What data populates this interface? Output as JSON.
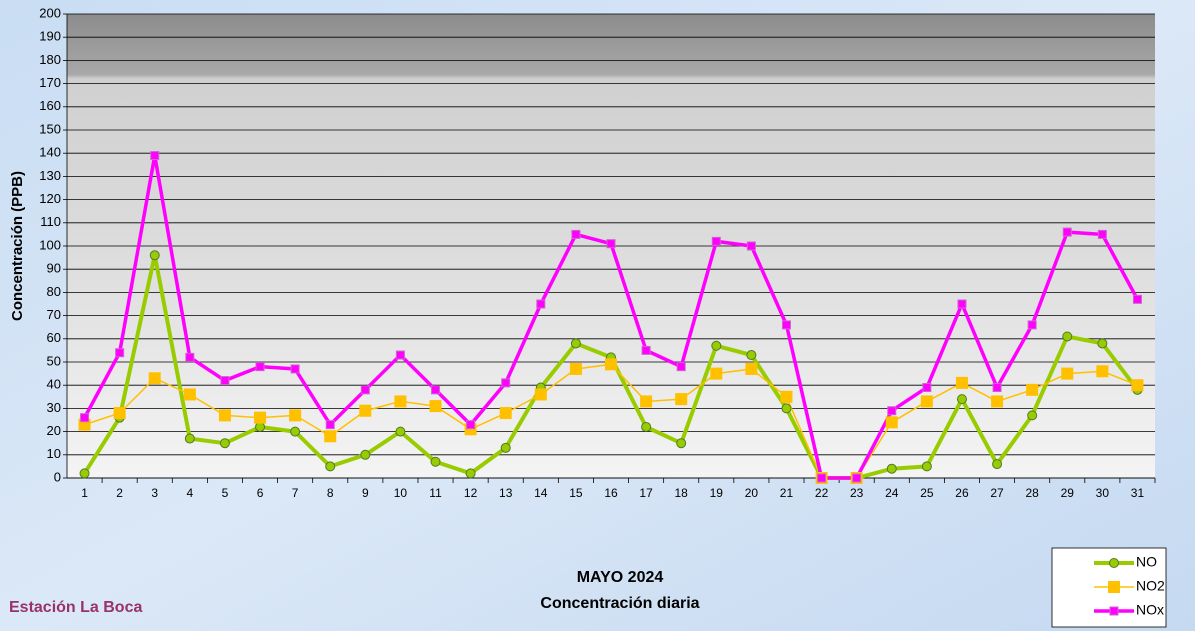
{
  "chart_data": {
    "type": "line",
    "title": "MAYO 2024",
    "subtitle": "Concentración diaria",
    "y_label": "Concentración  (PPB)",
    "annotation": "Estación La Boca",
    "categories": [
      "1",
      "2",
      "3",
      "4",
      "5",
      "6",
      "7",
      "8",
      "9",
      "10",
      "11",
      "12",
      "13",
      "14",
      "15",
      "16",
      "17",
      "18",
      "19",
      "20",
      "21",
      "22",
      "23",
      "24",
      "25",
      "26",
      "27",
      "28",
      "29",
      "30",
      "31"
    ],
    "series": [
      {
        "name": "NO",
        "color": "#99cc00",
        "values": [
          2,
          26,
          96,
          17,
          15,
          22,
          20,
          5,
          10,
          20,
          7,
          2,
          13,
          39,
          58,
          52,
          22,
          15,
          57,
          53,
          30,
          0,
          0,
          4,
          5,
          34,
          6,
          27,
          61,
          58,
          38
        ]
      },
      {
        "name": "NO2",
        "color": "#ffc000",
        "values": [
          23,
          28,
          43,
          36,
          27,
          26,
          27,
          18,
          29,
          33,
          31,
          21,
          28,
          36,
          47,
          49,
          33,
          34,
          45,
          47,
          35,
          0,
          0,
          24,
          33,
          41,
          33,
          38,
          45,
          46,
          40
        ]
      },
      {
        "name": "NOx",
        "color": "#ff00ff",
        "values": [
          26,
          54,
          139,
          52,
          42,
          48,
          47,
          23,
          38,
          53,
          38,
          23,
          41,
          75,
          105,
          101,
          55,
          48,
          102,
          100,
          66,
          0,
          0,
          29,
          39,
          75,
          39,
          66,
          106,
          105,
          77
        ]
      }
    ],
    "ylim": [
      0,
      200
    ],
    "yticks": [
      0,
      10,
      20,
      30,
      40,
      50,
      60,
      70,
      80,
      90,
      100,
      110,
      120,
      130,
      140,
      150,
      160,
      170,
      180,
      190,
      200
    ],
    "grid": true,
    "legend": "bottom-right"
  }
}
